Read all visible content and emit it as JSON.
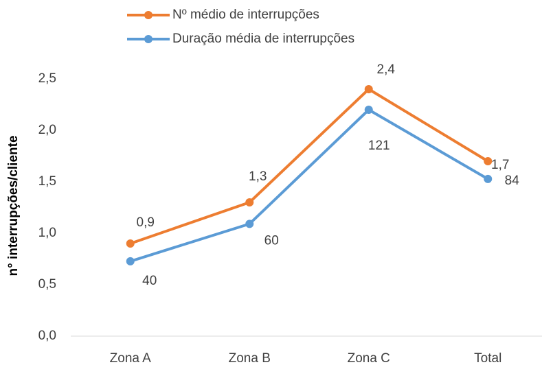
{
  "chart_data": {
    "type": "line",
    "y_label": "n° interrupções/cliente",
    "categories": [
      "Zona A",
      "Zona B",
      "Zona C",
      "Total"
    ],
    "series": [
      {
        "name": "Nº médio de interrupções",
        "color": "#ed7d31",
        "values": [
          0.9,
          1.3,
          2.4,
          1.7
        ],
        "value_labels": [
          "0,9",
          "1,3",
          "2,4",
          "1,7"
        ]
      },
      {
        "name": "Duração média de interrupções",
        "color": "#5b9bd5",
        "values": [
          40,
          60,
          121,
          84
        ],
        "axis": "y2"
      }
    ],
    "ylim": [
      0,
      2.5
    ],
    "yticks": [
      {
        "value": 0,
        "label": "0,0"
      },
      {
        "value": 0.5,
        "label": "0,5"
      },
      {
        "value": 1,
        "label": "1,0"
      },
      {
        "value": 1.5,
        "label": "1,5"
      },
      {
        "value": 2,
        "label": "2,0"
      },
      {
        "value": 2.5,
        "label": "2,5"
      }
    ],
    "y2lim": [
      0,
      137.5
    ],
    "legend": "top"
  }
}
